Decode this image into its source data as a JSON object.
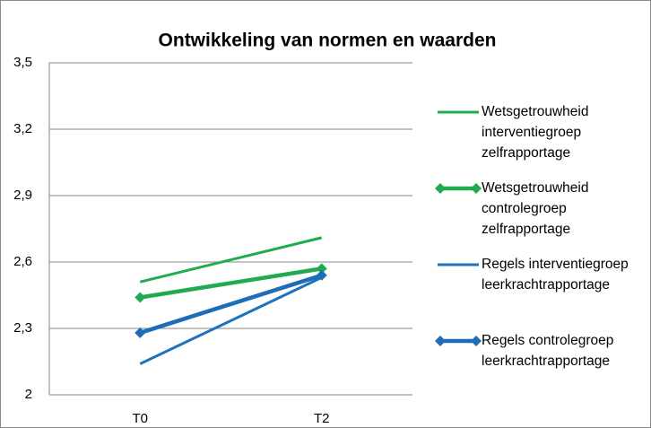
{
  "chart_data": {
    "type": "line",
    "title": "Ontwikkeling van normen en waarden",
    "categories": [
      "T0",
      "T2"
    ],
    "series": [
      {
        "name": "Wetsgetrouwheid interventiegroep zelfrapportage",
        "color": "#1fab4f",
        "marker": "none",
        "values": [
          2.51,
          2.71
        ]
      },
      {
        "name": "Wetsgetrouwheid controlegroep zelfrapportage",
        "color": "#1fab4f",
        "marker": "diamond",
        "values": [
          2.44,
          2.57
        ]
      },
      {
        "name": "Regels interventiegroep leerkrachtrapportage",
        "color": "#1f72bd",
        "marker": "none",
        "values": [
          2.14,
          2.53
        ]
      },
      {
        "name": "Regels controlegroep leerkrachtrapportage",
        "color": "#1f6cb8",
        "marker": "diamond",
        "values": [
          2.28,
          2.54
        ]
      }
    ],
    "ylim": [
      2,
      3.5
    ],
    "yticks": [
      2,
      {
        "value": 2.3,
        "label": "2,3"
      },
      {
        "value": 2.6,
        "label": "2,6"
      },
      {
        "value": 2.9,
        "label": "2,9"
      },
      {
        "value": 3.2,
        "label": "3,2"
      },
      {
        "value": 3.5,
        "label": "3,5"
      }
    ],
    "grid": true,
    "legend": "right"
  }
}
